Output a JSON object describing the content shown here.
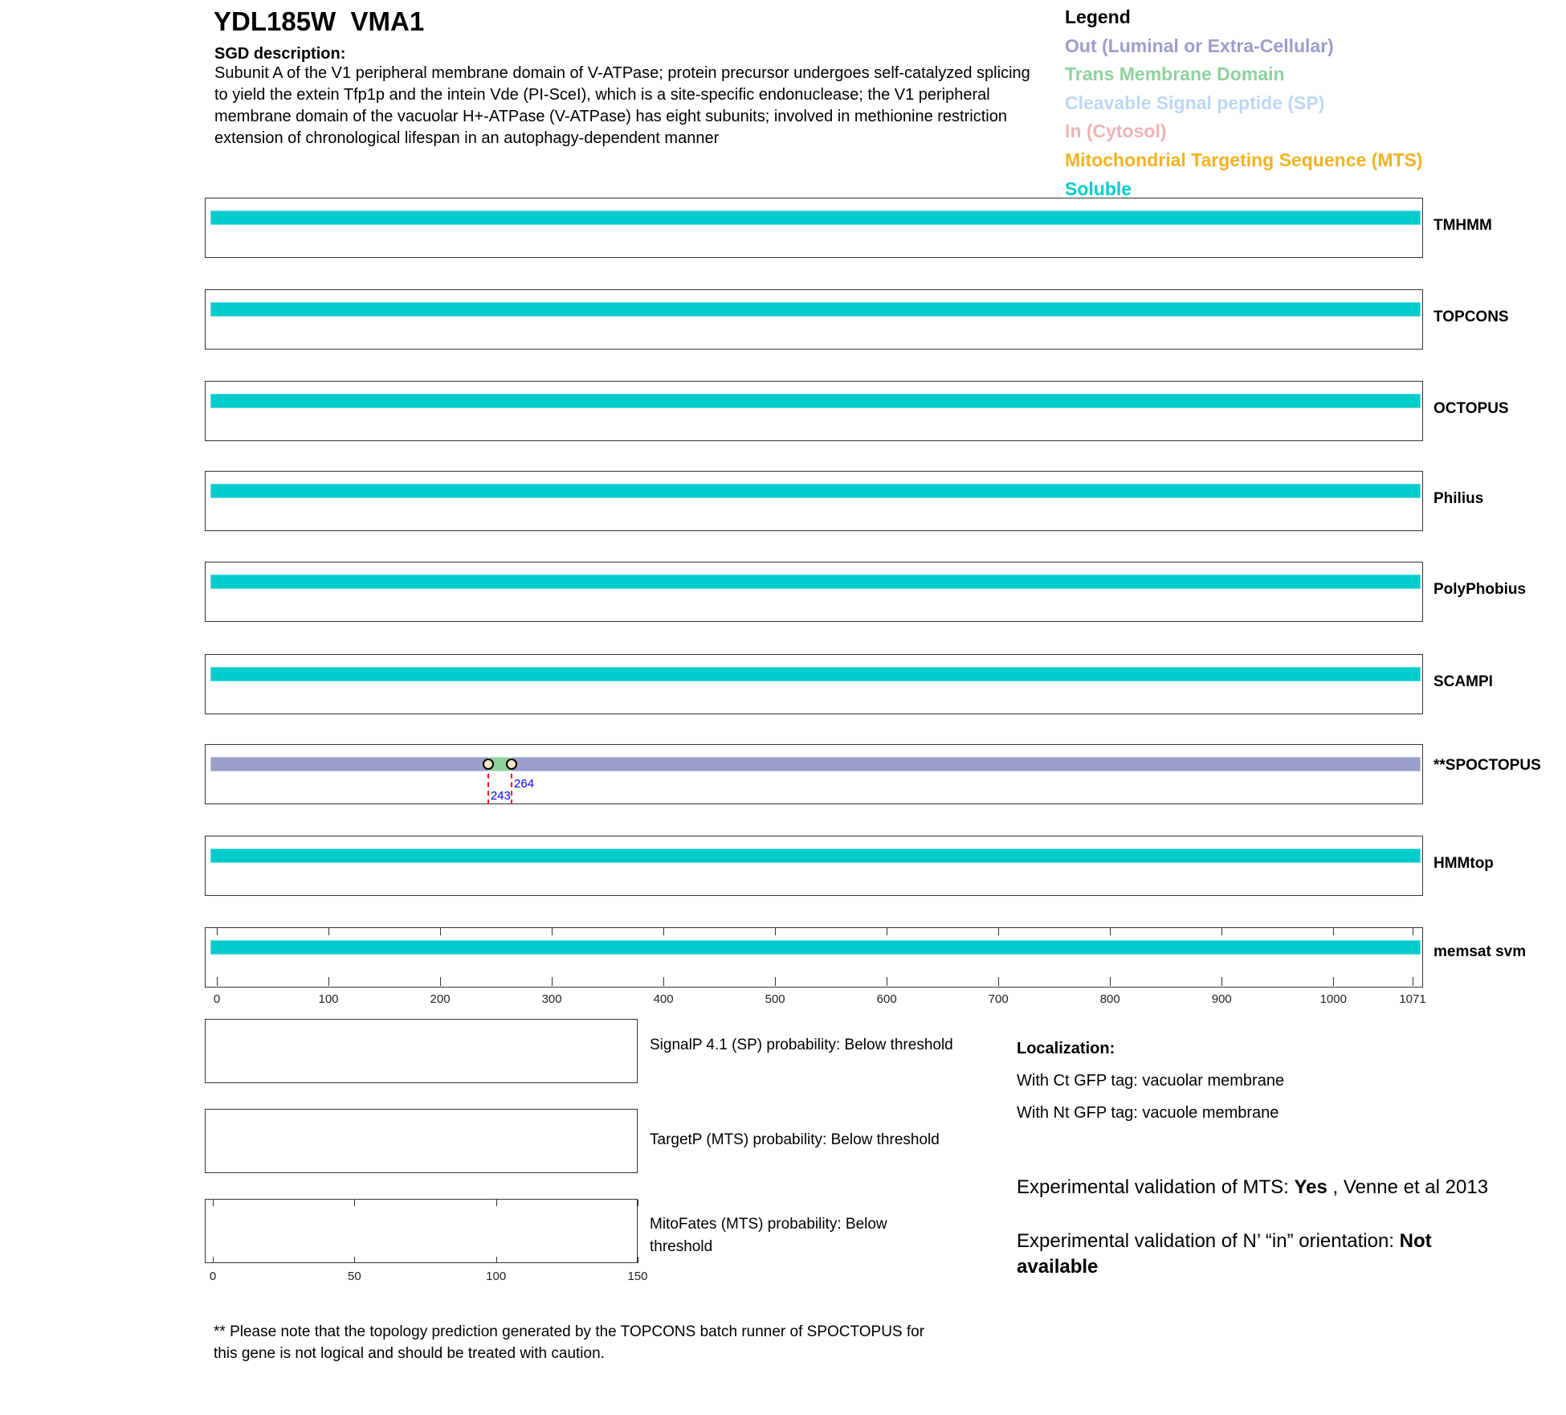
{
  "header": {
    "title": "YDL185W  VMA1",
    "sgd_heading": "SGD description:",
    "sgd_text": "Subunit A of the V1 peripheral membrane domain of V-ATPase; protein precursor undergoes self-catalyzed splicing to yield the extein Tfp1p and the intein Vde (PI-SceI), which is a site-specific endonuclease; the V1 peripheral membrane domain of the vacuolar H+-ATPase (V-ATPase) has eight subunits; involved in methionine restriction extension of chronological lifespan in an autophagy-dependent manner"
  },
  "legend": {
    "title": "Legend",
    "items": [
      {
        "label": "Out (Luminal or Extra-Cellular)",
        "color": "#9b9dcb"
      },
      {
        "label": "Trans Membrane Domain",
        "color": "#8fd19e"
      },
      {
        "label": "Cleavable Signal peptide (SP)",
        "color": "#bcd7f3"
      },
      {
        "label": "In (Cytosol)",
        "color": "#eeb4b4"
      },
      {
        "label": "Mitochondrial Targeting Sequence (MTS)",
        "color": "#f0b323"
      },
      {
        "label": "Soluble",
        "color": "#00cccc"
      }
    ]
  },
  "chart_data": {
    "type": "topology",
    "protein_length": 1071,
    "xlim": [
      0,
      1071
    ],
    "x_ticks": [
      "0",
      "100",
      "200",
      "300",
      "400",
      "500",
      "600",
      "700",
      "800",
      "900",
      "1000",
      "1071"
    ],
    "tracks": [
      {
        "method": "TMHMM",
        "segments": [
          {
            "start": 0,
            "end": 1071,
            "type": "Soluble"
          }
        ]
      },
      {
        "method": "TOPCONS",
        "segments": [
          {
            "start": 0,
            "end": 1071,
            "type": "Soluble"
          }
        ]
      },
      {
        "method": "OCTOPUS",
        "segments": [
          {
            "start": 0,
            "end": 1071,
            "type": "Soluble"
          }
        ]
      },
      {
        "method": "Philius",
        "segments": [
          {
            "start": 0,
            "end": 1071,
            "type": "Soluble"
          }
        ]
      },
      {
        "method": "PolyPhobius",
        "segments": [
          {
            "start": 0,
            "end": 1071,
            "type": "Soluble"
          }
        ]
      },
      {
        "method": "SCAMPI",
        "segments": [
          {
            "start": 0,
            "end": 1071,
            "type": "Soluble"
          }
        ]
      },
      {
        "method": "**SPOCTOPUS",
        "segments": [
          {
            "start": 0,
            "end": 243,
            "type": "Out"
          },
          {
            "start": 243,
            "end": 264,
            "type": "TM"
          },
          {
            "start": 264,
            "end": 1071,
            "type": "Out"
          }
        ],
        "markers": [
          "243",
          "264"
        ]
      },
      {
        "method": "HMMtop",
        "segments": [
          {
            "start": 0,
            "end": 1071,
            "type": "Soluble"
          }
        ]
      },
      {
        "method": "memsat svm",
        "segments": [
          {
            "start": 0,
            "end": 1071,
            "type": "Soluble"
          }
        ]
      }
    ],
    "small_axis": {
      "xlim": [
        0,
        150
      ],
      "ticks": [
        "0",
        "50",
        "100",
        "150"
      ]
    }
  },
  "predictions": [
    "SignalP 4.1 (SP) probability: Below threshold",
    "TargetP (MTS) probability: Below threshold",
    "MitoFates (MTS) probability: Below threshold"
  ],
  "localization": {
    "heading": "Localization:",
    "ct": "With Ct GFP tag: vacuolar membrane",
    "nt": "With Nt GFP tag: vacuole membrane"
  },
  "experimental": {
    "mts_prefix": "Experimental validation of MTS: ",
    "mts_value": "Yes",
    "mts_suffix": " , Venne et al 2013",
    "nin_prefix": "Experimental validation of N’ “in” orientation: ",
    "nin_value": "Not available"
  },
  "footnote": "** Please note that the topology prediction generated by the TOPCONS batch runner of SPOCTOPUS for this gene is not logical and should be treated with caution."
}
